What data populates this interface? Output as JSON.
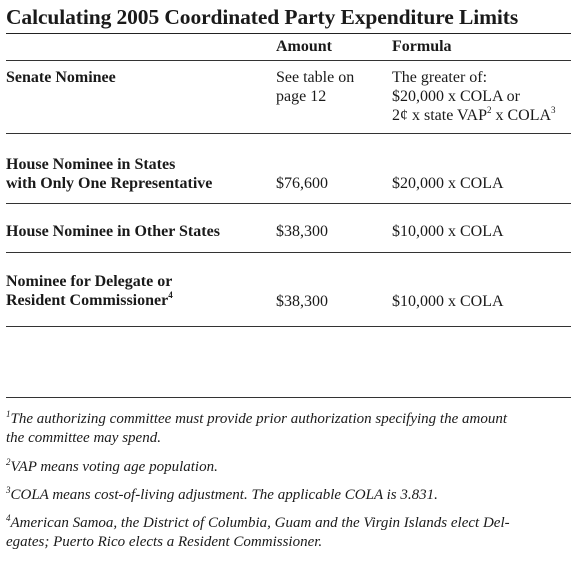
{
  "title": "Calculating 2005 Coordinated Party Expenditure Limits",
  "columns": {
    "amount": "Amount",
    "formula": "Formula"
  },
  "rows": [
    {
      "label_lines": [
        "Senate Nominee"
      ],
      "amount_lines": [
        "See table on",
        "page 12"
      ],
      "formula_lines": [
        "The greater of:",
        "$20,000 x COLA or",
        "2¢ x state VAP",
        " x COLA"
      ],
      "formula_sup": [
        "2",
        "3"
      ]
    },
    {
      "label_lines": [
        "House Nominee in States",
        "with Only One Representative"
      ],
      "amount": "$76,600",
      "formula": "$20,000 x COLA"
    },
    {
      "label_lines": [
        "House Nominee in Other States"
      ],
      "amount": "$38,300",
      "formula": "$10,000 x COLA"
    },
    {
      "label_lines": [
        "Nominee for Delegate or",
        "Resident Commissioner"
      ],
      "label_sup": "4",
      "amount": "$38,300",
      "formula": "$10,000 x COLA"
    }
  ],
  "footnotes": [
    {
      "mark": "1",
      "lines": [
        "The authorizing committee must provide prior authorization specifying the amount",
        "the committee may spend."
      ]
    },
    {
      "mark": "2",
      "lines": [
        "VAP means voting age population."
      ]
    },
    {
      "mark": "3",
      "lines": [
        "COLA means cost-of-living adjustment.  The applicable COLA is 3.831."
      ]
    },
    {
      "mark": "4",
      "lines": [
        "American Samoa, the District of Columbia, Guam and the Virgin Islands elect Del-",
        "egates; Puerto Rico elects a Resident Commissioner."
      ]
    }
  ]
}
